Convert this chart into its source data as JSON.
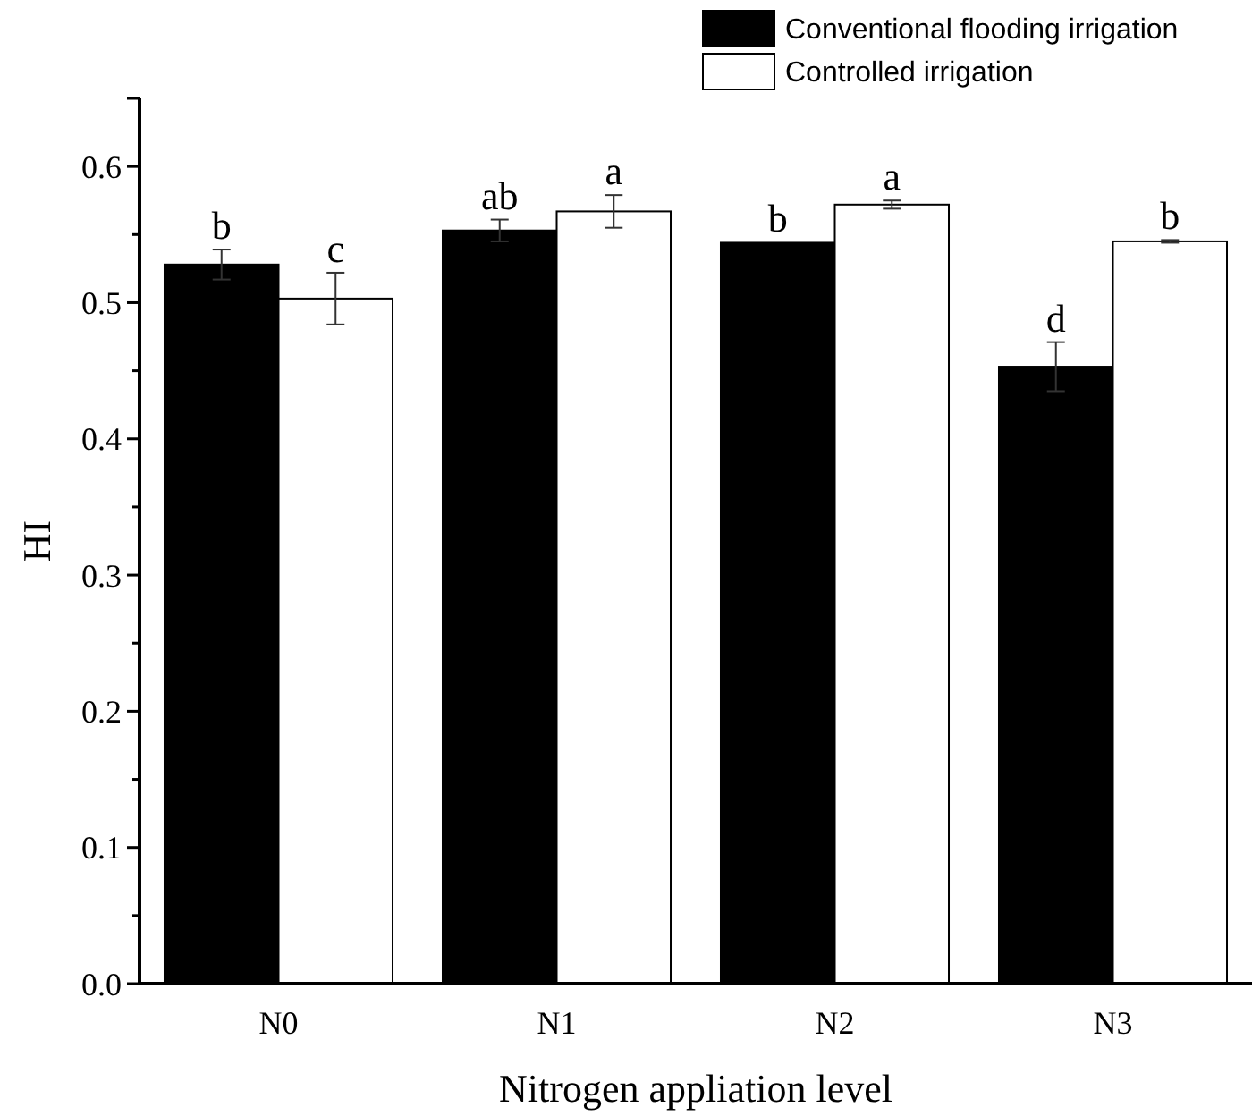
{
  "chart_data": {
    "type": "bar",
    "xlabel": "Nitrogen appliation level",
    "ylabel": "HI",
    "categories": [
      "N0",
      "N1",
      "N2",
      "N3"
    ],
    "series": [
      {
        "name": "Conventional flooding irrigation",
        "color": "#000000",
        "values": [
          0.528,
          0.553,
          0.544,
          0.453
        ],
        "errors": [
          0.011,
          0.008,
          null,
          0.018
        ]
      },
      {
        "name": "Controlled irrigation",
        "color": "#ffffff",
        "values": [
          0.503,
          0.567,
          0.572,
          0.545
        ],
        "errors": [
          0.019,
          0.012,
          0.003,
          0.001
        ]
      }
    ],
    "ylim": [
      0,
      0.65
    ],
    "yticks": [
      {
        "value": 0,
        "label": "0.0"
      },
      {
        "value": 0.05,
        "label": null
      },
      {
        "value": 0.1,
        "label": "0.1"
      },
      {
        "value": 0.15,
        "label": null
      },
      {
        "value": 0.2,
        "label": "0.2"
      },
      {
        "value": 0.25,
        "label": null
      },
      {
        "value": 0.3,
        "label": "0.3"
      },
      {
        "value": 0.35,
        "label": null
      },
      {
        "value": 0.4,
        "label": "0.4"
      },
      {
        "value": 0.45,
        "label": null
      },
      {
        "value": 0.5,
        "label": "0.5"
      },
      {
        "value": 0.55,
        "label": null
      },
      {
        "value": 0.6,
        "label": "0.6"
      }
    ],
    "legend": "top right",
    "annotations": [
      {
        "text": "b",
        "x": "N0",
        "y": 0.528
      },
      {
        "text": "c",
        "x": "N0",
        "y": 0.503
      },
      {
        "text": "ab",
        "x": "N1",
        "y": 0.553
      },
      {
        "text": "a",
        "x": "N1",
        "y": 0.567
      },
      {
        "text": "b",
        "x": "N2",
        "y": 0.544
      },
      {
        "text": "a",
        "x": "N2",
        "y": 0.572
      },
      {
        "text": "d",
        "x": "N3",
        "y": 0.453
      },
      {
        "text": "b",
        "x": "N3",
        "y": 0.545
      }
    ]
  }
}
